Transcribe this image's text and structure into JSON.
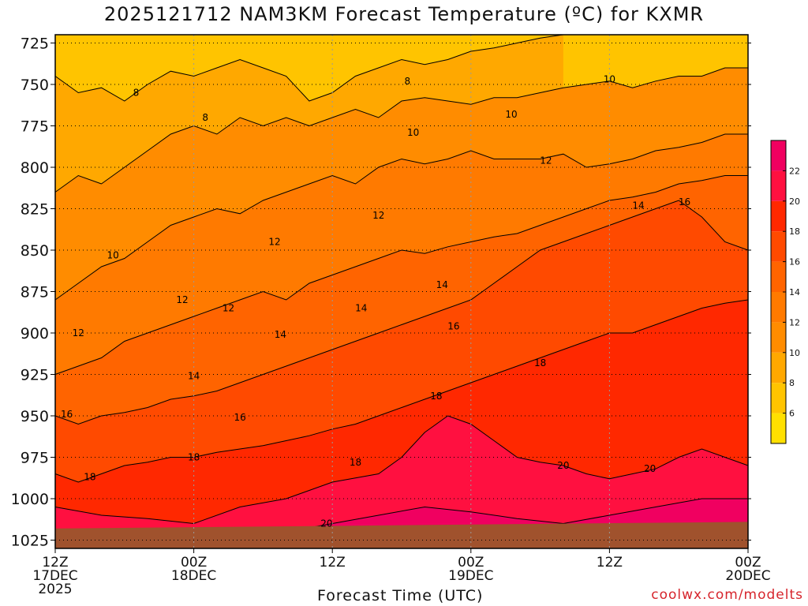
{
  "chart_data": {
    "type": "heatmap",
    "title": "2025121712 NAM3KM Forecast Temperature (ºC) for KXMR",
    "xlabel": "Forecast Time (UTC)",
    "ylabel": "",
    "y_axis": {
      "ticks": [
        725,
        750,
        775,
        800,
        825,
        850,
        875,
        900,
        925,
        950,
        975,
        1000,
        1025
      ],
      "tick_labels": [
        "725",
        "750",
        "775",
        "800",
        "825",
        "850",
        "875",
        "900",
        "925",
        "950",
        "975",
        "1000",
        "1025"
      ],
      "range": [
        720,
        1030
      ]
    },
    "x_axis": {
      "tick_hours": [
        0,
        12,
        24,
        36,
        48,
        60,
        72
      ],
      "tick_labels": [
        [
          "12Z",
          "17DEC",
          "2025"
        ],
        [
          "00Z",
          "18DEC"
        ],
        [
          "12Z"
        ],
        [
          "00Z",
          "19DEC"
        ],
        [
          "12Z"
        ],
        [
          "00Z",
          "20DEC"
        ]
      ],
      "range_hours": [
        0,
        60
      ]
    },
    "grid": true,
    "colorbar": {
      "levels": [
        4,
        6,
        8,
        10,
        12,
        14,
        16,
        18,
        20,
        22,
        24
      ],
      "tick_labels": [
        "6",
        "8",
        "10",
        "12",
        "14",
        "16",
        "18",
        "20",
        "22"
      ],
      "colors": [
        "#ffe000",
        "#ffc400",
        "#ffa800",
        "#ff8c00",
        "#ff7a00",
        "#ff6400",
        "#ff4a00",
        "#ff2800",
        "#ff1040",
        "#f00060"
      ]
    },
    "isotherms": [
      {
        "value": 8,
        "points": [
          [
            0,
            745
          ],
          [
            2,
            755
          ],
          [
            4,
            752
          ],
          [
            6,
            760
          ],
          [
            8,
            750
          ],
          [
            10,
            742
          ],
          [
            12,
            745
          ],
          [
            14,
            740
          ],
          [
            16,
            735
          ],
          [
            18,
            740
          ],
          [
            20,
            745
          ],
          [
            22,
            760
          ],
          [
            24,
            755
          ],
          [
            26,
            745
          ],
          [
            28,
            740
          ],
          [
            30,
            735
          ],
          [
            32,
            738
          ],
          [
            34,
            735
          ],
          [
            36,
            730
          ],
          [
            38,
            728
          ],
          [
            40,
            725
          ],
          [
            42,
            722
          ],
          [
            44,
            720
          ]
        ]
      },
      {
        "value": 10,
        "points": [
          [
            0,
            815
          ],
          [
            2,
            805
          ],
          [
            4,
            810
          ],
          [
            6,
            800
          ],
          [
            8,
            790
          ],
          [
            10,
            780
          ],
          [
            12,
            775
          ],
          [
            14,
            780
          ],
          [
            16,
            770
          ],
          [
            18,
            775
          ],
          [
            20,
            770
          ],
          [
            22,
            775
          ],
          [
            24,
            770
          ],
          [
            26,
            765
          ],
          [
            28,
            770
          ],
          [
            30,
            760
          ],
          [
            32,
            758
          ],
          [
            34,
            760
          ],
          [
            36,
            762
          ],
          [
            38,
            758
          ],
          [
            40,
            758
          ],
          [
            42,
            755
          ],
          [
            44,
            752
          ],
          [
            46,
            750
          ],
          [
            48,
            748
          ],
          [
            50,
            752
          ],
          [
            52,
            748
          ],
          [
            54,
            745
          ],
          [
            56,
            745
          ],
          [
            58,
            740
          ],
          [
            60,
            740
          ]
        ]
      },
      {
        "value": 12,
        "points": [
          [
            0,
            880
          ],
          [
            2,
            870
          ],
          [
            4,
            860
          ],
          [
            6,
            855
          ],
          [
            8,
            845
          ],
          [
            10,
            835
          ],
          [
            12,
            830
          ],
          [
            14,
            825
          ],
          [
            16,
            828
          ],
          [
            18,
            820
          ],
          [
            20,
            815
          ],
          [
            22,
            810
          ],
          [
            24,
            805
          ],
          [
            26,
            810
          ],
          [
            28,
            800
          ],
          [
            30,
            795
          ],
          [
            32,
            798
          ],
          [
            34,
            795
          ],
          [
            36,
            790
          ],
          [
            38,
            795
          ],
          [
            40,
            795
          ],
          [
            42,
            795
          ],
          [
            44,
            792
          ],
          [
            46,
            800
          ],
          [
            48,
            798
          ],
          [
            50,
            795
          ],
          [
            52,
            790
          ],
          [
            54,
            788
          ],
          [
            56,
            785
          ],
          [
            58,
            780
          ],
          [
            60,
            780
          ]
        ]
      },
      {
        "value": 14,
        "points": [
          [
            0,
            925
          ],
          [
            2,
            920
          ],
          [
            4,
            915
          ],
          [
            6,
            905
          ],
          [
            8,
            900
          ],
          [
            10,
            895
          ],
          [
            12,
            890
          ],
          [
            14,
            885
          ],
          [
            16,
            880
          ],
          [
            18,
            875
          ],
          [
            20,
            880
          ],
          [
            22,
            870
          ],
          [
            24,
            865
          ],
          [
            26,
            860
          ],
          [
            28,
            855
          ],
          [
            30,
            850
          ],
          [
            32,
            852
          ],
          [
            34,
            848
          ],
          [
            36,
            845
          ],
          [
            38,
            842
          ],
          [
            40,
            840
          ],
          [
            42,
            835
          ],
          [
            44,
            830
          ],
          [
            46,
            825
          ],
          [
            48,
            820
          ],
          [
            50,
            818
          ],
          [
            52,
            815
          ],
          [
            54,
            810
          ],
          [
            56,
            808
          ],
          [
            58,
            805
          ],
          [
            60,
            805
          ]
        ]
      },
      {
        "value": 16,
        "points": [
          [
            0,
            950
          ],
          [
            2,
            955
          ],
          [
            4,
            950
          ],
          [
            6,
            948
          ],
          [
            8,
            945
          ],
          [
            10,
            940
          ],
          [
            12,
            938
          ],
          [
            14,
            935
          ],
          [
            16,
            930
          ],
          [
            18,
            925
          ],
          [
            20,
            920
          ],
          [
            22,
            915
          ],
          [
            24,
            910
          ],
          [
            26,
            905
          ],
          [
            28,
            900
          ],
          [
            30,
            895
          ],
          [
            32,
            890
          ],
          [
            34,
            885
          ],
          [
            36,
            880
          ],
          [
            38,
            870
          ],
          [
            40,
            860
          ],
          [
            42,
            850
          ],
          [
            44,
            845
          ],
          [
            46,
            840
          ],
          [
            48,
            835
          ],
          [
            50,
            830
          ],
          [
            52,
            825
          ],
          [
            54,
            820
          ],
          [
            56,
            830
          ],
          [
            58,
            845
          ],
          [
            60,
            850
          ]
        ]
      },
      {
        "value": 18,
        "points": [
          [
            0,
            985
          ],
          [
            2,
            990
          ],
          [
            4,
            985
          ],
          [
            6,
            980
          ],
          [
            8,
            978
          ],
          [
            10,
            975
          ],
          [
            12,
            975
          ],
          [
            14,
            972
          ],
          [
            16,
            970
          ],
          [
            18,
            968
          ],
          [
            20,
            965
          ],
          [
            22,
            962
          ],
          [
            24,
            958
          ],
          [
            26,
            955
          ],
          [
            28,
            950
          ],
          [
            30,
            945
          ],
          [
            32,
            940
          ],
          [
            34,
            935
          ],
          [
            36,
            930
          ],
          [
            38,
            925
          ],
          [
            40,
            920
          ],
          [
            42,
            915
          ],
          [
            44,
            910
          ],
          [
            46,
            905
          ],
          [
            48,
            900
          ],
          [
            50,
            900
          ],
          [
            52,
            895
          ],
          [
            54,
            890
          ],
          [
            56,
            885
          ],
          [
            58,
            882
          ],
          [
            60,
            880
          ]
        ]
      },
      {
        "value": 20,
        "points": [
          [
            0,
            1005
          ],
          [
            4,
            1010
          ],
          [
            8,
            1012
          ],
          [
            12,
            1015
          ],
          [
            16,
            1005
          ],
          [
            20,
            1000
          ],
          [
            24,
            990
          ],
          [
            28,
            985
          ],
          [
            30,
            975
          ],
          [
            32,
            960
          ],
          [
            34,
            950
          ],
          [
            36,
            955
          ],
          [
            38,
            965
          ],
          [
            40,
            975
          ],
          [
            42,
            978
          ],
          [
            44,
            980
          ],
          [
            46,
            985
          ],
          [
            48,
            988
          ],
          [
            50,
            985
          ],
          [
            52,
            982
          ],
          [
            54,
            975
          ],
          [
            56,
            970
          ],
          [
            58,
            975
          ],
          [
            60,
            980
          ]
        ]
      },
      {
        "value": 22,
        "points": [
          [
            20,
            1020
          ],
          [
            24,
            1015
          ],
          [
            28,
            1010
          ],
          [
            32,
            1005
          ],
          [
            36,
            1008
          ],
          [
            40,
            1012
          ],
          [
            44,
            1015
          ],
          [
            48,
            1010
          ],
          [
            52,
            1005
          ],
          [
            56,
            1000
          ],
          [
            60,
            1000
          ]
        ]
      }
    ],
    "contour_labels": [
      {
        "text": "8",
        "hour": 7.0,
        "p": 755
      },
      {
        "text": "8",
        "hour": 13.0,
        "p": 770
      },
      {
        "text": "8",
        "hour": 30.5,
        "p": 748
      },
      {
        "text": "10",
        "hour": 48.0,
        "p": 747
      },
      {
        "text": "10",
        "hour": 31.0,
        "p": 779
      },
      {
        "text": "10",
        "hour": 39.5,
        "p": 768
      },
      {
        "text": "10",
        "hour": 5.0,
        "p": 853
      },
      {
        "text": "12",
        "hour": 28.0,
        "p": 829
      },
      {
        "text": "12",
        "hour": 42.5,
        "p": 796
      },
      {
        "text": "12",
        "hour": 19.0,
        "p": 845
      },
      {
        "text": "12",
        "hour": 11.0,
        "p": 880
      },
      {
        "text": "12",
        "hour": 15.0,
        "p": 885
      },
      {
        "text": "12",
        "hour": 2.0,
        "p": 900
      },
      {
        "text": "14",
        "hour": 33.5,
        "p": 871
      },
      {
        "text": "14",
        "hour": 50.5,
        "p": 823
      },
      {
        "text": "14",
        "hour": 26.5,
        "p": 885
      },
      {
        "text": "14",
        "hour": 19.5,
        "p": 901
      },
      {
        "text": "14",
        "hour": 12.0,
        "p": 926
      },
      {
        "text": "16",
        "hour": 34.5,
        "p": 896
      },
      {
        "text": "16",
        "hour": 54.5,
        "p": 821
      },
      {
        "text": "16",
        "hour": 16.0,
        "p": 951
      },
      {
        "text": "16",
        "hour": 1.0,
        "p": 949
      },
      {
        "text": "18",
        "hour": 42.0,
        "p": 918
      },
      {
        "text": "18",
        "hour": 33.0,
        "p": 938
      },
      {
        "text": "18",
        "hour": 26.0,
        "p": 978
      },
      {
        "text": "18",
        "hour": 12.0,
        "p": 975
      },
      {
        "text": "18",
        "hour": 3.0,
        "p": 987
      },
      {
        "text": "20",
        "hour": 44.0,
        "p": 980
      },
      {
        "text": "20",
        "hour": 51.5,
        "p": 982
      },
      {
        "text": "20",
        "hour": 23.5,
        "p": 1015
      }
    ],
    "legend": "right",
    "background_gradient_by_pressure": [
      {
        "p": 725,
        "t": 7.5
      },
      {
        "p": 760,
        "t": 9.5
      },
      {
        "p": 800,
        "t": 11.5
      },
      {
        "p": 850,
        "t": 13.5
      },
      {
        "p": 900,
        "t": 15.5
      },
      {
        "p": 950,
        "t": 17.5
      },
      {
        "p": 1000,
        "t": 19.5
      },
      {
        "p": 1020,
        "t": 21
      }
    ]
  },
  "credit": "coolwx.com/modelts"
}
